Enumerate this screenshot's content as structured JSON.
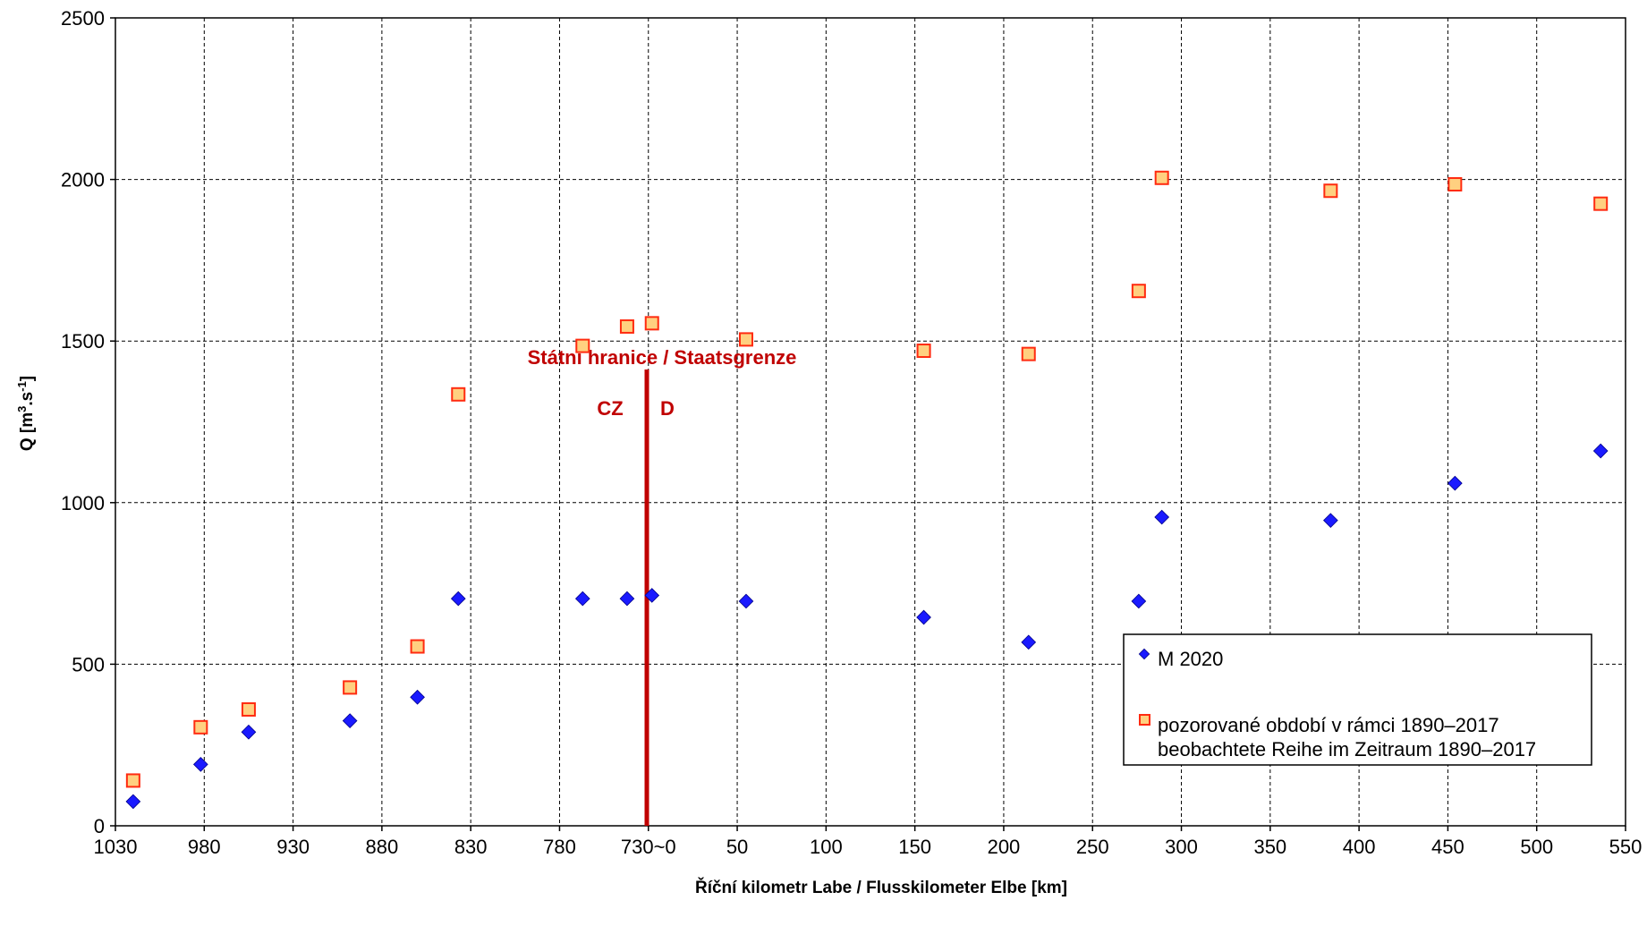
{
  "chart_data": {
    "type": "scatter",
    "title": "",
    "xlabel": "Říční kilometr Labe / Flusskilometer  Elbe [km]",
    "ylabel_main": "Q [m",
    "ylabel_sup1": "3",
    "ylabel_mid": ".s",
    "ylabel_sup2": "-1",
    "ylabel_end": "]",
    "x_tick_labels": [
      "1030",
      "980",
      "930",
      "880",
      "830",
      "780",
      "730~0",
      "50",
      "100",
      "150",
      "200",
      "250",
      "300",
      "350",
      "400",
      "450",
      "500",
      "550"
    ],
    "y_tick_labels": [
      "0",
      "500",
      "1000",
      "1500",
      "2000",
      "2500"
    ],
    "ylim": [
      0,
      2500
    ],
    "grid": true,
    "legend_placement": "bottom-right",
    "border": {
      "title": "Státní hranice / Staatsgrenze",
      "left_label": "CZ",
      "right_label": "D",
      "color": "#c00000"
    },
    "series": [
      {
        "name": "M 2020",
        "marker": "diamond",
        "color": "#1a1aff",
        "points": [
          {
            "seg": "cz",
            "km": 1020,
            "q": 75
          },
          {
            "seg": "cz",
            "km": 982,
            "q": 190
          },
          {
            "seg": "cz",
            "km": 955,
            "q": 290
          },
          {
            "seg": "cz",
            "km": 898,
            "q": 325
          },
          {
            "seg": "cz",
            "km": 860,
            "q": 398
          },
          {
            "seg": "cz",
            "km": 837,
            "q": 703
          },
          {
            "seg": "cz",
            "km": 767,
            "q": 703
          },
          {
            "seg": "cz",
            "km": 742,
            "q": 703
          },
          {
            "seg": "de",
            "km": 2,
            "q": 713
          },
          {
            "seg": "de",
            "km": 55,
            "q": 695
          },
          {
            "seg": "de",
            "km": 155,
            "q": 645
          },
          {
            "seg": "de",
            "km": 214,
            "q": 568
          },
          {
            "seg": "de",
            "km": 276,
            "q": 695
          },
          {
            "seg": "de",
            "km": 289,
            "q": 955
          },
          {
            "seg": "de",
            "km": 384,
            "q": 945
          },
          {
            "seg": "de",
            "km": 454,
            "q": 1060
          },
          {
            "seg": "de",
            "km": 536,
            "q": 1160
          }
        ]
      },
      {
        "name": "pozorované období v rámci 1890–2017",
        "name_line2": "beobachtete Reihe im Zeitraum 1890–2017",
        "marker": "square",
        "color": "#ff2b10",
        "fill": "#ffd080",
        "points": [
          {
            "seg": "cz",
            "km": 1020,
            "q": 140
          },
          {
            "seg": "cz",
            "km": 982,
            "q": 305
          },
          {
            "seg": "cz",
            "km": 955,
            "q": 360
          },
          {
            "seg": "cz",
            "km": 898,
            "q": 428
          },
          {
            "seg": "cz",
            "km": 860,
            "q": 555
          },
          {
            "seg": "cz",
            "km": 837,
            "q": 1335
          },
          {
            "seg": "cz",
            "km": 767,
            "q": 1485
          },
          {
            "seg": "cz",
            "km": 742,
            "q": 1545
          },
          {
            "seg": "de",
            "km": 2,
            "q": 1555
          },
          {
            "seg": "de",
            "km": 55,
            "q": 1505
          },
          {
            "seg": "de",
            "km": 155,
            "q": 1470
          },
          {
            "seg": "de",
            "km": 214,
            "q": 1460
          },
          {
            "seg": "de",
            "km": 276,
            "q": 1655
          },
          {
            "seg": "de",
            "km": 289,
            "q": 2005
          },
          {
            "seg": "de",
            "km": 384,
            "q": 1965
          },
          {
            "seg": "de",
            "km": 454,
            "q": 1985
          },
          {
            "seg": "de",
            "km": 536,
            "q": 1925
          }
        ]
      }
    ]
  }
}
